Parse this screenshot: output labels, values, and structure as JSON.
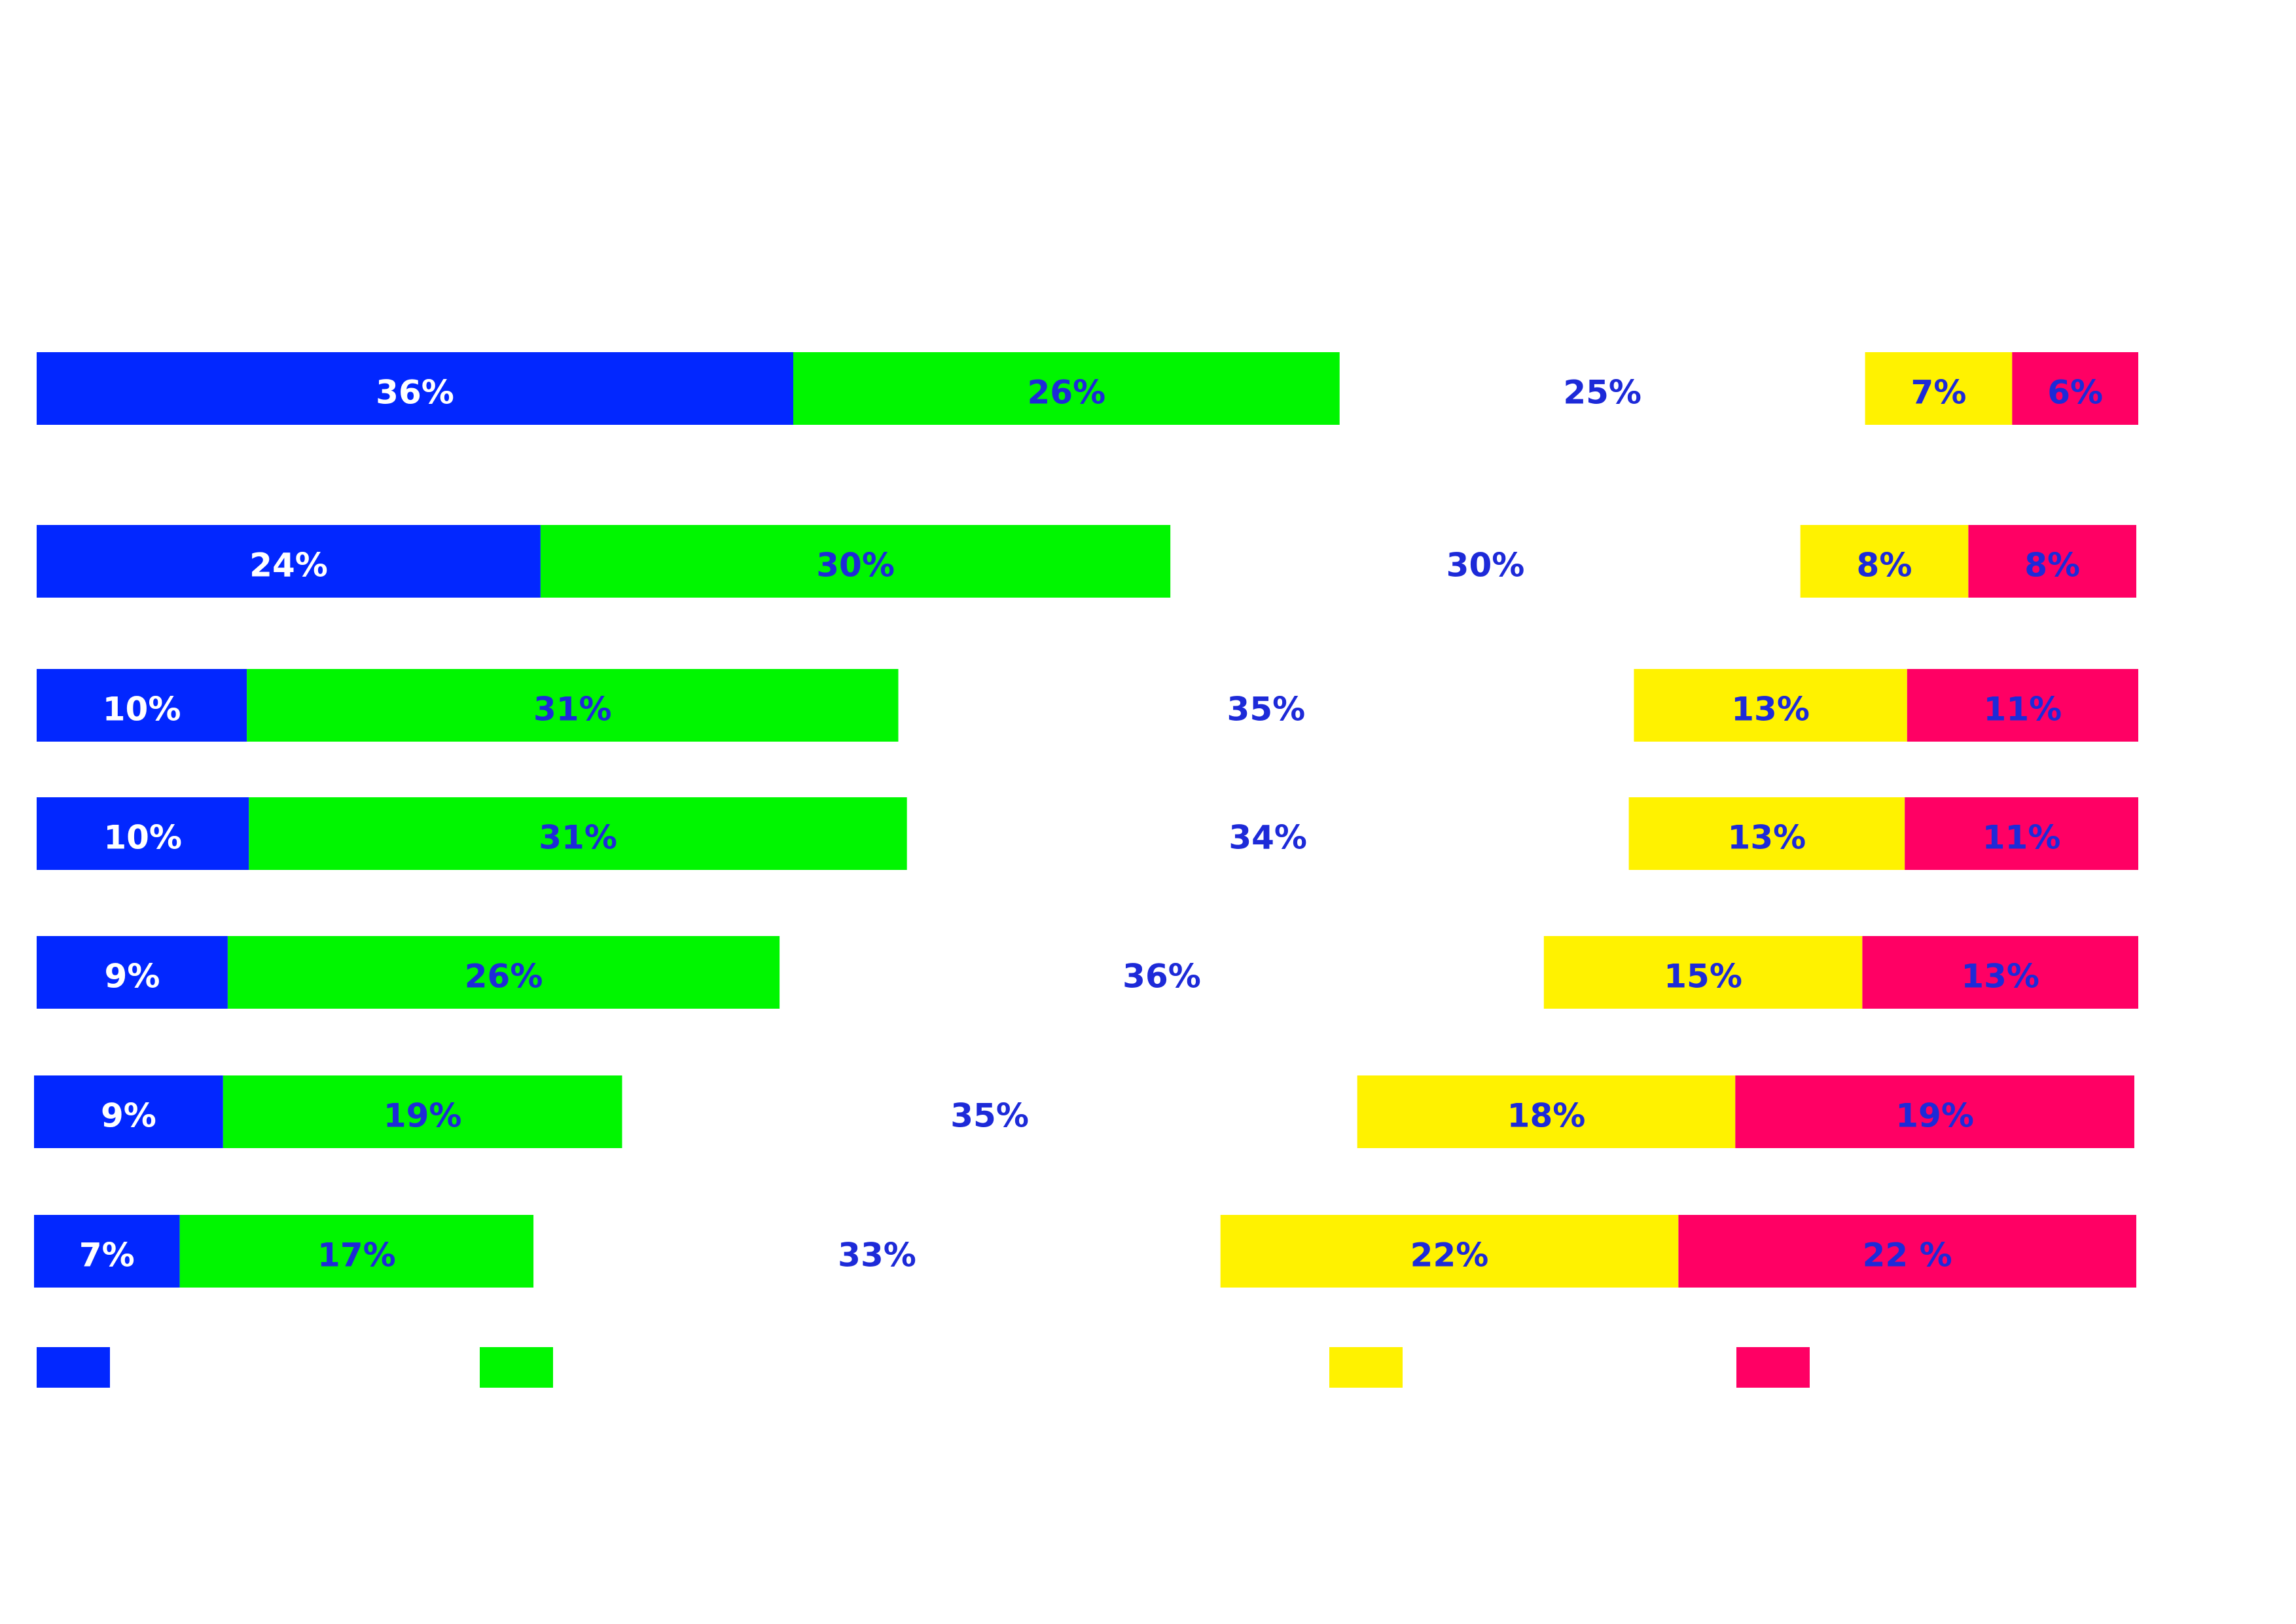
{
  "colors": {
    "background": "#ffffff",
    "series": [
      "#0227ff",
      "#00f600",
      "#ffffff",
      "#fff200",
      "#ff0064"
    ],
    "label_on_dark": "#ffffff",
    "label_on_light": "#1d2ad8"
  },
  "chart_data": {
    "type": "bar",
    "orientation": "horizontal",
    "stacked": true,
    "normalized": true,
    "title": "",
    "xlabel": "",
    "ylabel": "",
    "grid": false,
    "legend_position": "bottom",
    "categories": [
      "",
      "",
      "",
      "",
      "",
      "",
      ""
    ],
    "series": [
      {
        "values": [
          36,
          24,
          10,
          10,
          9,
          9,
          7
        ],
        "labels": [
          "36%",
          "24%",
          "10%",
          "10%",
          "9%",
          "9%",
          "7%"
        ]
      },
      {
        "values": [
          26,
          30,
          31,
          31,
          26,
          19,
          17
        ],
        "labels": [
          "26%",
          "30%",
          "31%",
          "31%",
          "26%",
          "19%",
          "17%"
        ]
      },
      {
        "values": [
          25,
          30,
          35,
          34,
          36,
          35,
          33
        ],
        "labels": [
          "25%",
          "30%",
          "35%",
          "34%",
          "36%",
          "35%",
          "33%"
        ]
      },
      {
        "values": [
          7,
          8,
          13,
          13,
          15,
          18,
          22
        ],
        "labels": [
          "7%",
          "8%",
          "13%",
          "13%",
          "15%",
          "18%",
          "22%"
        ]
      },
      {
        "values": [
          6,
          8,
          11,
          11,
          13,
          19,
          22
        ],
        "labels": [
          "6%",
          "8%",
          "11%",
          "11%",
          "13%",
          "19%",
          "22  %"
        ]
      }
    ],
    "legend_swatches": [
      0,
      1,
      3,
      4
    ]
  }
}
